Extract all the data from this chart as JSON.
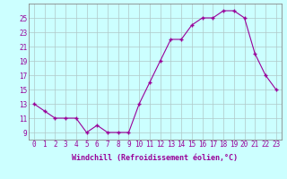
{
  "x": [
    0,
    1,
    2,
    3,
    4,
    5,
    6,
    7,
    8,
    9,
    10,
    11,
    12,
    13,
    14,
    15,
    16,
    17,
    18,
    19,
    20,
    21,
    22,
    23
  ],
  "y": [
    13,
    12,
    11,
    11,
    11,
    9,
    10,
    9,
    9,
    9,
    13,
    16,
    19,
    22,
    22,
    24,
    25,
    25,
    26,
    26,
    25,
    20,
    17,
    15
  ],
  "line_color": "#990099",
  "marker": "+",
  "marker_size": 3.5,
  "marker_linewidth": 1.0,
  "line_width": 0.8,
  "bg_color": "#ccffff",
  "grid_color": "#b0c8c8",
  "xlabel": "Windchill (Refroidissement éolien,°C)",
  "xlabel_color": "#990099",
  "tick_color": "#990099",
  "yticks": [
    9,
    11,
    13,
    15,
    17,
    19,
    21,
    23,
    25
  ],
  "xticks": [
    0,
    1,
    2,
    3,
    4,
    5,
    6,
    7,
    8,
    9,
    10,
    11,
    12,
    13,
    14,
    15,
    16,
    17,
    18,
    19,
    20,
    21,
    22,
    23
  ],
  "ylim": [
    8.0,
    27.0
  ],
  "xlim": [
    -0.5,
    23.5
  ],
  "tick_fontsize": 5.5,
  "xlabel_fontsize": 6.0
}
